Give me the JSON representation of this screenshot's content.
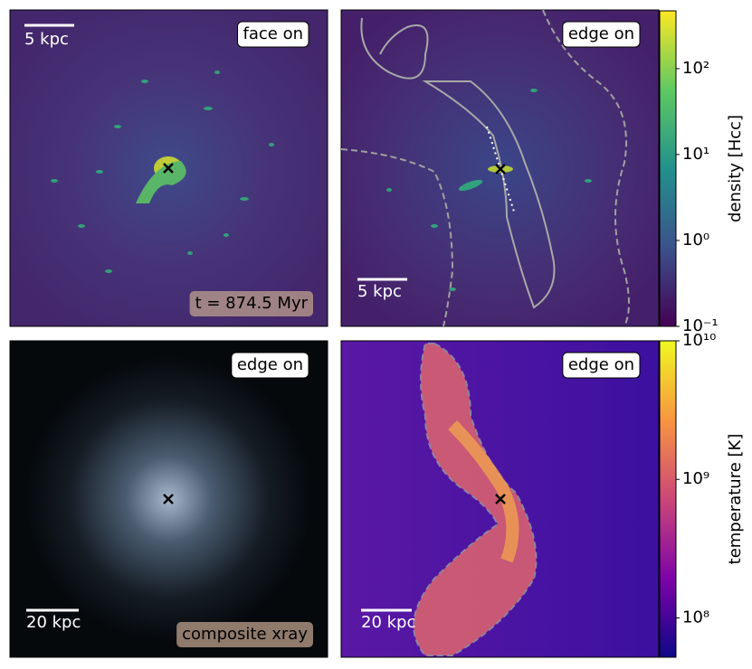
{
  "panels": [
    {
      "label": "face on",
      "scale_bar": "5 kpc",
      "annotation": "t = 874.5 Myr"
    },
    {
      "label": "edge on",
      "scale_bar": "5 kpc"
    },
    {
      "label": "edge on",
      "scale_bar": "20 kpc",
      "annotation": "composite xray"
    },
    {
      "label": "edge on",
      "scale_bar": "20 kpc"
    }
  ],
  "colorbars": [
    {
      "label": "density [Hcc]",
      "scale": "log",
      "lim": [
        0.1,
        470
      ],
      "ticks": [
        {
          "value": 0.1,
          "label": "10⁻¹"
        },
        {
          "value": 1,
          "label": "10⁰"
        },
        {
          "value": 10,
          "label": "10¹"
        },
        {
          "value": 100,
          "label": "10²"
        }
      ],
      "colors": [
        "#440154",
        "#3b528b",
        "#21918c",
        "#5ec962",
        "#fde725"
      ]
    },
    {
      "label": "temperature [K]",
      "scale": "log",
      "lim": [
        52000000,
        10000000000
      ],
      "ticks": [
        {
          "value": 100000000,
          "label": "10⁸"
        },
        {
          "value": 1000000000,
          "label": "10⁹"
        },
        {
          "value": 10000000000,
          "label": "10¹⁰"
        }
      ],
      "colors": [
        "#0d0887",
        "#7e03a8",
        "#cc4778",
        "#f89540",
        "#f0f921"
      ]
    }
  ]
}
